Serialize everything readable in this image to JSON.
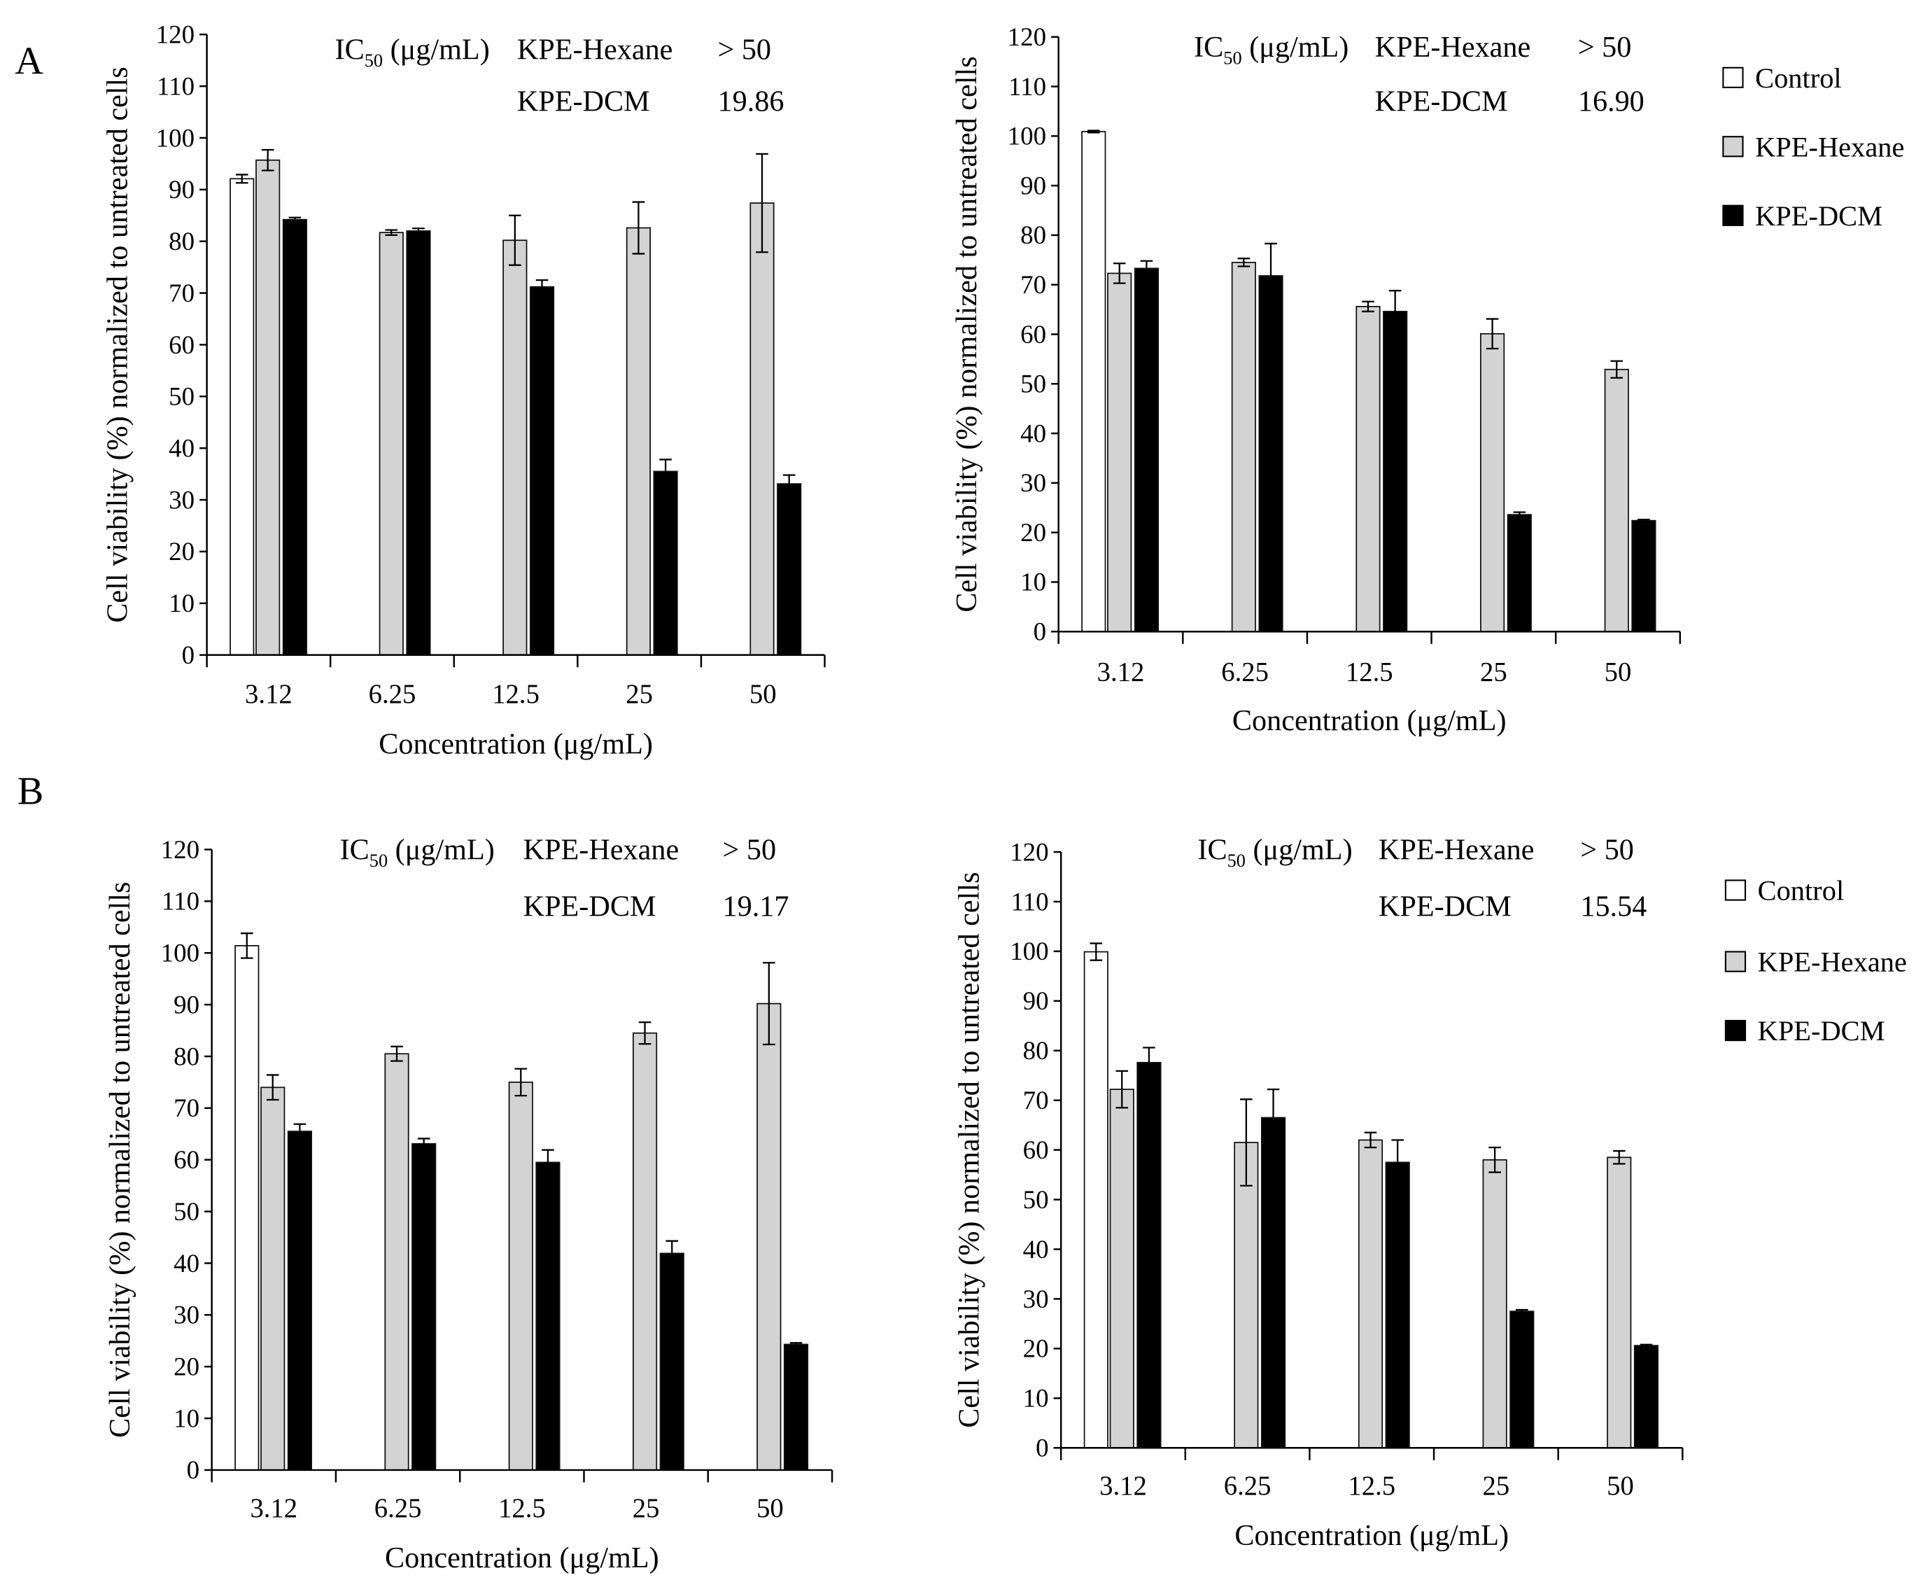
{
  "chart_data": {
    "type": "bar",
    "categories": [
      "3.12",
      "6.25",
      "12.5",
      "25",
      "50"
    ],
    "xlabel": "Concentration (μg/mL)",
    "ylabel": "Cell viability (%) normalized to untreated cells",
    "ylim": [
      0,
      120
    ],
    "yticks": [
      0,
      10,
      20,
      30,
      40,
      50,
      60,
      70,
      80,
      90,
      100,
      110,
      120
    ],
    "series": [
      {
        "name": "Control",
        "color": "#ffffff"
      },
      {
        "name": "KPE-Hexane",
        "color": "#d3d3d3"
      },
      {
        "name": "KPE-DCM",
        "color": "#000000"
      }
    ],
    "ic50_label": {
      "prefix": "IC",
      "sub": "50",
      "suffix": " (μg/mL)"
    },
    "panels": [
      {
        "label": "A",
        "charts": [
          {
            "values": {
              "Control": [
                92.1,
                null,
                null,
                null,
                null
              ],
              "KPE-Hexane": [
                95.7,
                81.7,
                80.2,
                82.6,
                87.4
              ],
              "KPE-DCM": [
                84.2,
                82.0,
                71.2,
                35.5,
                33.1
              ]
            },
            "errors": {
              "Control": [
                0.8,
                null,
                null,
                null,
                null
              ],
              "KPE-Hexane": [
                2.0,
                0.5,
                4.8,
                5.0,
                9.5
              ],
              "KPE-DCM": [
                0.4,
                0.5,
                1.3,
                2.3,
                1.7
              ]
            },
            "ic50": [
              {
                "name": "KPE-Hexane",
                "value": "> 50"
              },
              {
                "name": "KPE-DCM",
                "value": "19.86"
              }
            ]
          },
          {
            "values": {
              "Control": [
                100.9,
                null,
                null,
                null,
                null
              ],
              "KPE-Hexane": [
                72.3,
                74.5,
                65.6,
                60.1,
                52.9
              ],
              "KPE-DCM": [
                73.3,
                71.8,
                64.6,
                23.6,
                22.4
              ]
            },
            "errors": {
              "Control": [
                0.2,
                null,
                null,
                null,
                null
              ],
              "KPE-Hexane": [
                2.0,
                0.8,
                1.0,
                3.0,
                1.7
              ],
              "KPE-DCM": [
                1.5,
                6.5,
                4.2,
                0.5,
                0.2
              ]
            },
            "ic50": [
              {
                "name": "KPE-Hexane",
                "value": "> 50"
              },
              {
                "name": "KPE-DCM",
                "value": "16.90"
              }
            ]
          }
        ]
      },
      {
        "label": "B",
        "charts": [
          {
            "values": {
              "Control": [
                101.4,
                null,
                null,
                null,
                null
              ],
              "KPE-Hexane": [
                74.0,
                80.5,
                75.0,
                84.5,
                90.2
              ],
              "KPE-DCM": [
                65.5,
                63.1,
                59.5,
                41.9,
                24.3
              ]
            },
            "errors": {
              "Control": [
                2.4,
                null,
                null,
                null,
                null
              ],
              "KPE-Hexane": [
                2.4,
                1.4,
                2.6,
                2.1,
                7.9
              ],
              "KPE-DCM": [
                1.4,
                1.0,
                2.4,
                2.4,
                0.3
              ]
            },
            "ic50": [
              {
                "name": "KPE-Hexane",
                "value": "> 50"
              },
              {
                "name": "KPE-DCM",
                "value": "19.17"
              }
            ]
          },
          {
            "values": {
              "Control": [
                99.9,
                null,
                null,
                null,
                null
              ],
              "KPE-Hexane": [
                72.2,
                61.5,
                62.0,
                58.0,
                58.5
              ],
              "KPE-DCM": [
                77.6,
                66.5,
                57.5,
                27.5,
                20.6
              ]
            },
            "errors": {
              "Control": [
                1.7,
                null,
                null,
                null,
                null
              ],
              "KPE-Hexane": [
                3.7,
                8.7,
                1.5,
                2.5,
                1.3
              ],
              "KPE-DCM": [
                3.0,
                5.7,
                4.5,
                0.3,
                0.2
              ]
            },
            "ic50": [
              {
                "name": "KPE-Hexane",
                "value": "> 50"
              },
              {
                "name": "KPE-DCM",
                "value": "15.54"
              }
            ]
          }
        ]
      }
    ]
  }
}
